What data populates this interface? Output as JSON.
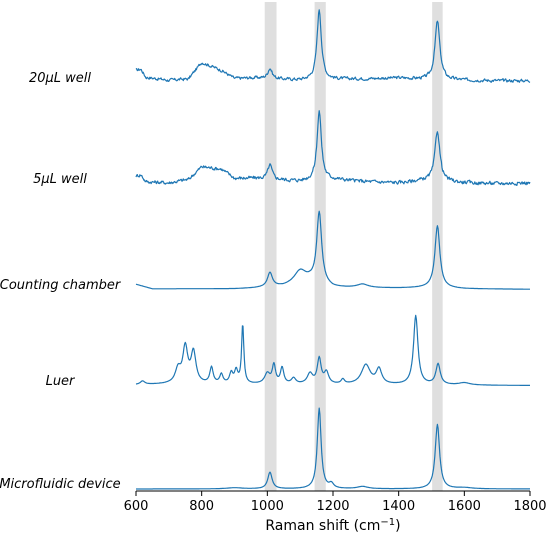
{
  "chart_data": {
    "type": "line",
    "xlabel": "Raman shift (cm",
    "xlabel_sup": "−1",
    "xlabel_tail": ")",
    "xlim": [
      600,
      1800
    ],
    "xticks": [
      600,
      800,
      1000,
      1200,
      1400,
      1600,
      1800
    ],
    "x_tick_labels": [
      "600",
      "800",
      "1000",
      "1200",
      "1400",
      "1600",
      "1800"
    ],
    "highlight_bands": [
      [
        992,
        1028
      ],
      [
        1144,
        1178
      ],
      [
        1502,
        1534
      ]
    ],
    "line_color": "#1f77b4",
    "band_color": "#d9d9d9",
    "y_axis": "stacked, unlabeled",
    "series": [
      {
        "name": "20µL well",
        "noise": 0.06,
        "baseline": [
          [
            600,
            0.55
          ],
          [
            615,
            0.6
          ],
          [
            630,
            0.25
          ],
          [
            700,
            0.12
          ],
          [
            760,
            0.18
          ],
          [
            800,
            0.9
          ],
          [
            860,
            0.55
          ],
          [
            900,
            0.2
          ],
          [
            960,
            0.22
          ],
          [
            1100,
            0.12
          ],
          [
            1200,
            0.16
          ],
          [
            1300,
            0.18
          ],
          [
            1400,
            0.22
          ],
          [
            1480,
            0.15
          ],
          [
            1600,
            0.12
          ],
          [
            1700,
            0.1
          ],
          [
            1800,
            0.1
          ]
        ],
        "peaks": [
          [
            1008,
            0.45,
            8
          ],
          [
            1158,
            3.05,
            8
          ],
          [
            1518,
            2.55,
            9
          ]
        ]
      },
      {
        "name": "5µL well",
        "noise": 0.07,
        "baseline": [
          [
            600,
            0.35
          ],
          [
            615,
            0.4
          ],
          [
            630,
            0.1
          ],
          [
            700,
            0.05
          ],
          [
            760,
            0.2
          ],
          [
            800,
            0.75
          ],
          [
            860,
            0.65
          ],
          [
            900,
            0.25
          ],
          [
            960,
            0.25
          ],
          [
            1100,
            0.12
          ],
          [
            1200,
            0.2
          ],
          [
            1300,
            0.1
          ],
          [
            1400,
            0.05
          ],
          [
            1480,
            0.15
          ],
          [
            1600,
            0.05
          ],
          [
            1700,
            0.02
          ],
          [
            1800,
            0.05
          ]
        ],
        "peaks": [
          [
            1008,
            0.62,
            8
          ],
          [
            1158,
            3.0,
            8
          ],
          [
            1518,
            2.2,
            9
          ]
        ]
      },
      {
        "name": "Counting chamber",
        "noise": 0.0,
        "baseline": [
          [
            600,
            0.25
          ],
          [
            650,
            0.05
          ],
          [
            900,
            0.05
          ],
          [
            960,
            0.08
          ],
          [
            1050,
            0.15
          ],
          [
            1130,
            0.35
          ],
          [
            1200,
            0.1
          ],
          [
            1400,
            0.08
          ],
          [
            1500,
            0.1
          ],
          [
            1600,
            0.05
          ],
          [
            1800,
            0.03
          ]
        ],
        "peaks": [
          [
            1008,
            0.62,
            9
          ],
          [
            1100,
            0.55,
            22
          ],
          [
            1158,
            3.1,
            9
          ],
          [
            1290,
            0.15,
            20
          ],
          [
            1518,
            2.7,
            9
          ]
        ]
      },
      {
        "name": "Luer",
        "noise": 0.0,
        "baseline": [
          [
            600,
            0.05
          ],
          [
            700,
            0.08
          ],
          [
            1800,
            0.02
          ]
        ],
        "peaks": [
          [
            620,
            0.15,
            8
          ],
          [
            728,
            0.6,
            10
          ],
          [
            750,
            1.55,
            9
          ],
          [
            775,
            1.35,
            9
          ],
          [
            830,
            0.7,
            6
          ],
          [
            860,
            0.4,
            6
          ],
          [
            890,
            0.45,
            6
          ],
          [
            905,
            0.55,
            6
          ],
          [
            925,
            2.6,
            4
          ],
          [
            1000,
            0.45,
            10
          ],
          [
            1020,
            0.8,
            6
          ],
          [
            1045,
            0.7,
            6
          ],
          [
            1080,
            0.25,
            8
          ],
          [
            1130,
            0.45,
            10
          ],
          [
            1158,
            1.1,
            7
          ],
          [
            1180,
            0.5,
            8
          ],
          [
            1230,
            0.2,
            6
          ],
          [
            1300,
            0.85,
            16
          ],
          [
            1340,
            0.65,
            10
          ],
          [
            1452,
            3.0,
            8
          ],
          [
            1520,
            0.9,
            8
          ],
          [
            1600,
            0.1,
            20
          ]
        ]
      },
      {
        "name": "Microfluidic device",
        "noise": 0.0,
        "baseline": [
          [
            600,
            0.0
          ],
          [
            1800,
            0.0
          ]
        ],
        "peaks": [
          [
            900,
            0.05,
            30
          ],
          [
            1008,
            0.72,
            8
          ],
          [
            1158,
            3.5,
            7
          ],
          [
            1195,
            0.2,
            8
          ],
          [
            1290,
            0.1,
            20
          ],
          [
            1518,
            2.8,
            8
          ],
          [
            1600,
            0.05,
            30
          ]
        ]
      }
    ]
  }
}
